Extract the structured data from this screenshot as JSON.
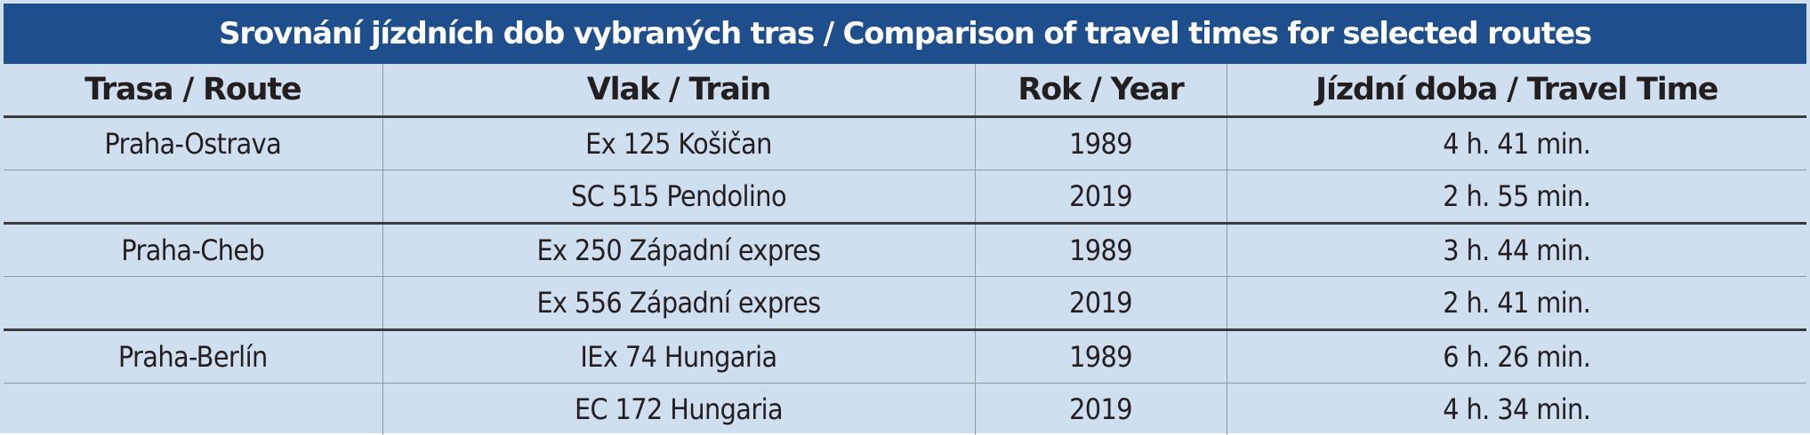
{
  "table": {
    "title": "Srovnání jízdních dob vybraných tras / Comparison of travel times for selected routes",
    "headers": {
      "route": "Trasa / Route",
      "train": "Vlak / Train",
      "year": "Rok / Year",
      "time": "Jízdní doba / Travel Time"
    },
    "rows": [
      {
        "route": "Praha-Ostrava",
        "train": "Ex 125 Košičan",
        "year": "1989",
        "time": "4 h. 41 min."
      },
      {
        "route": "",
        "train": "SC 515 Pendolino",
        "year": "2019",
        "time": "2 h. 55 min."
      },
      {
        "route": "Praha-Cheb",
        "train": "Ex 250 Západní expres",
        "year": "1989",
        "time": "3 h. 44 min."
      },
      {
        "route": "",
        "train": "Ex 556 Západní expres",
        "year": "2019",
        "time": "2 h. 41 min."
      },
      {
        "route": "Praha-Berlín",
        "train": "IEx 74 Hungaria",
        "year": "1989",
        "time": "6 h. 26 min."
      },
      {
        "route": "",
        "train": "EC 172 Hungaria",
        "year": "2019",
        "time": "4 h. 34 min."
      }
    ]
  }
}
